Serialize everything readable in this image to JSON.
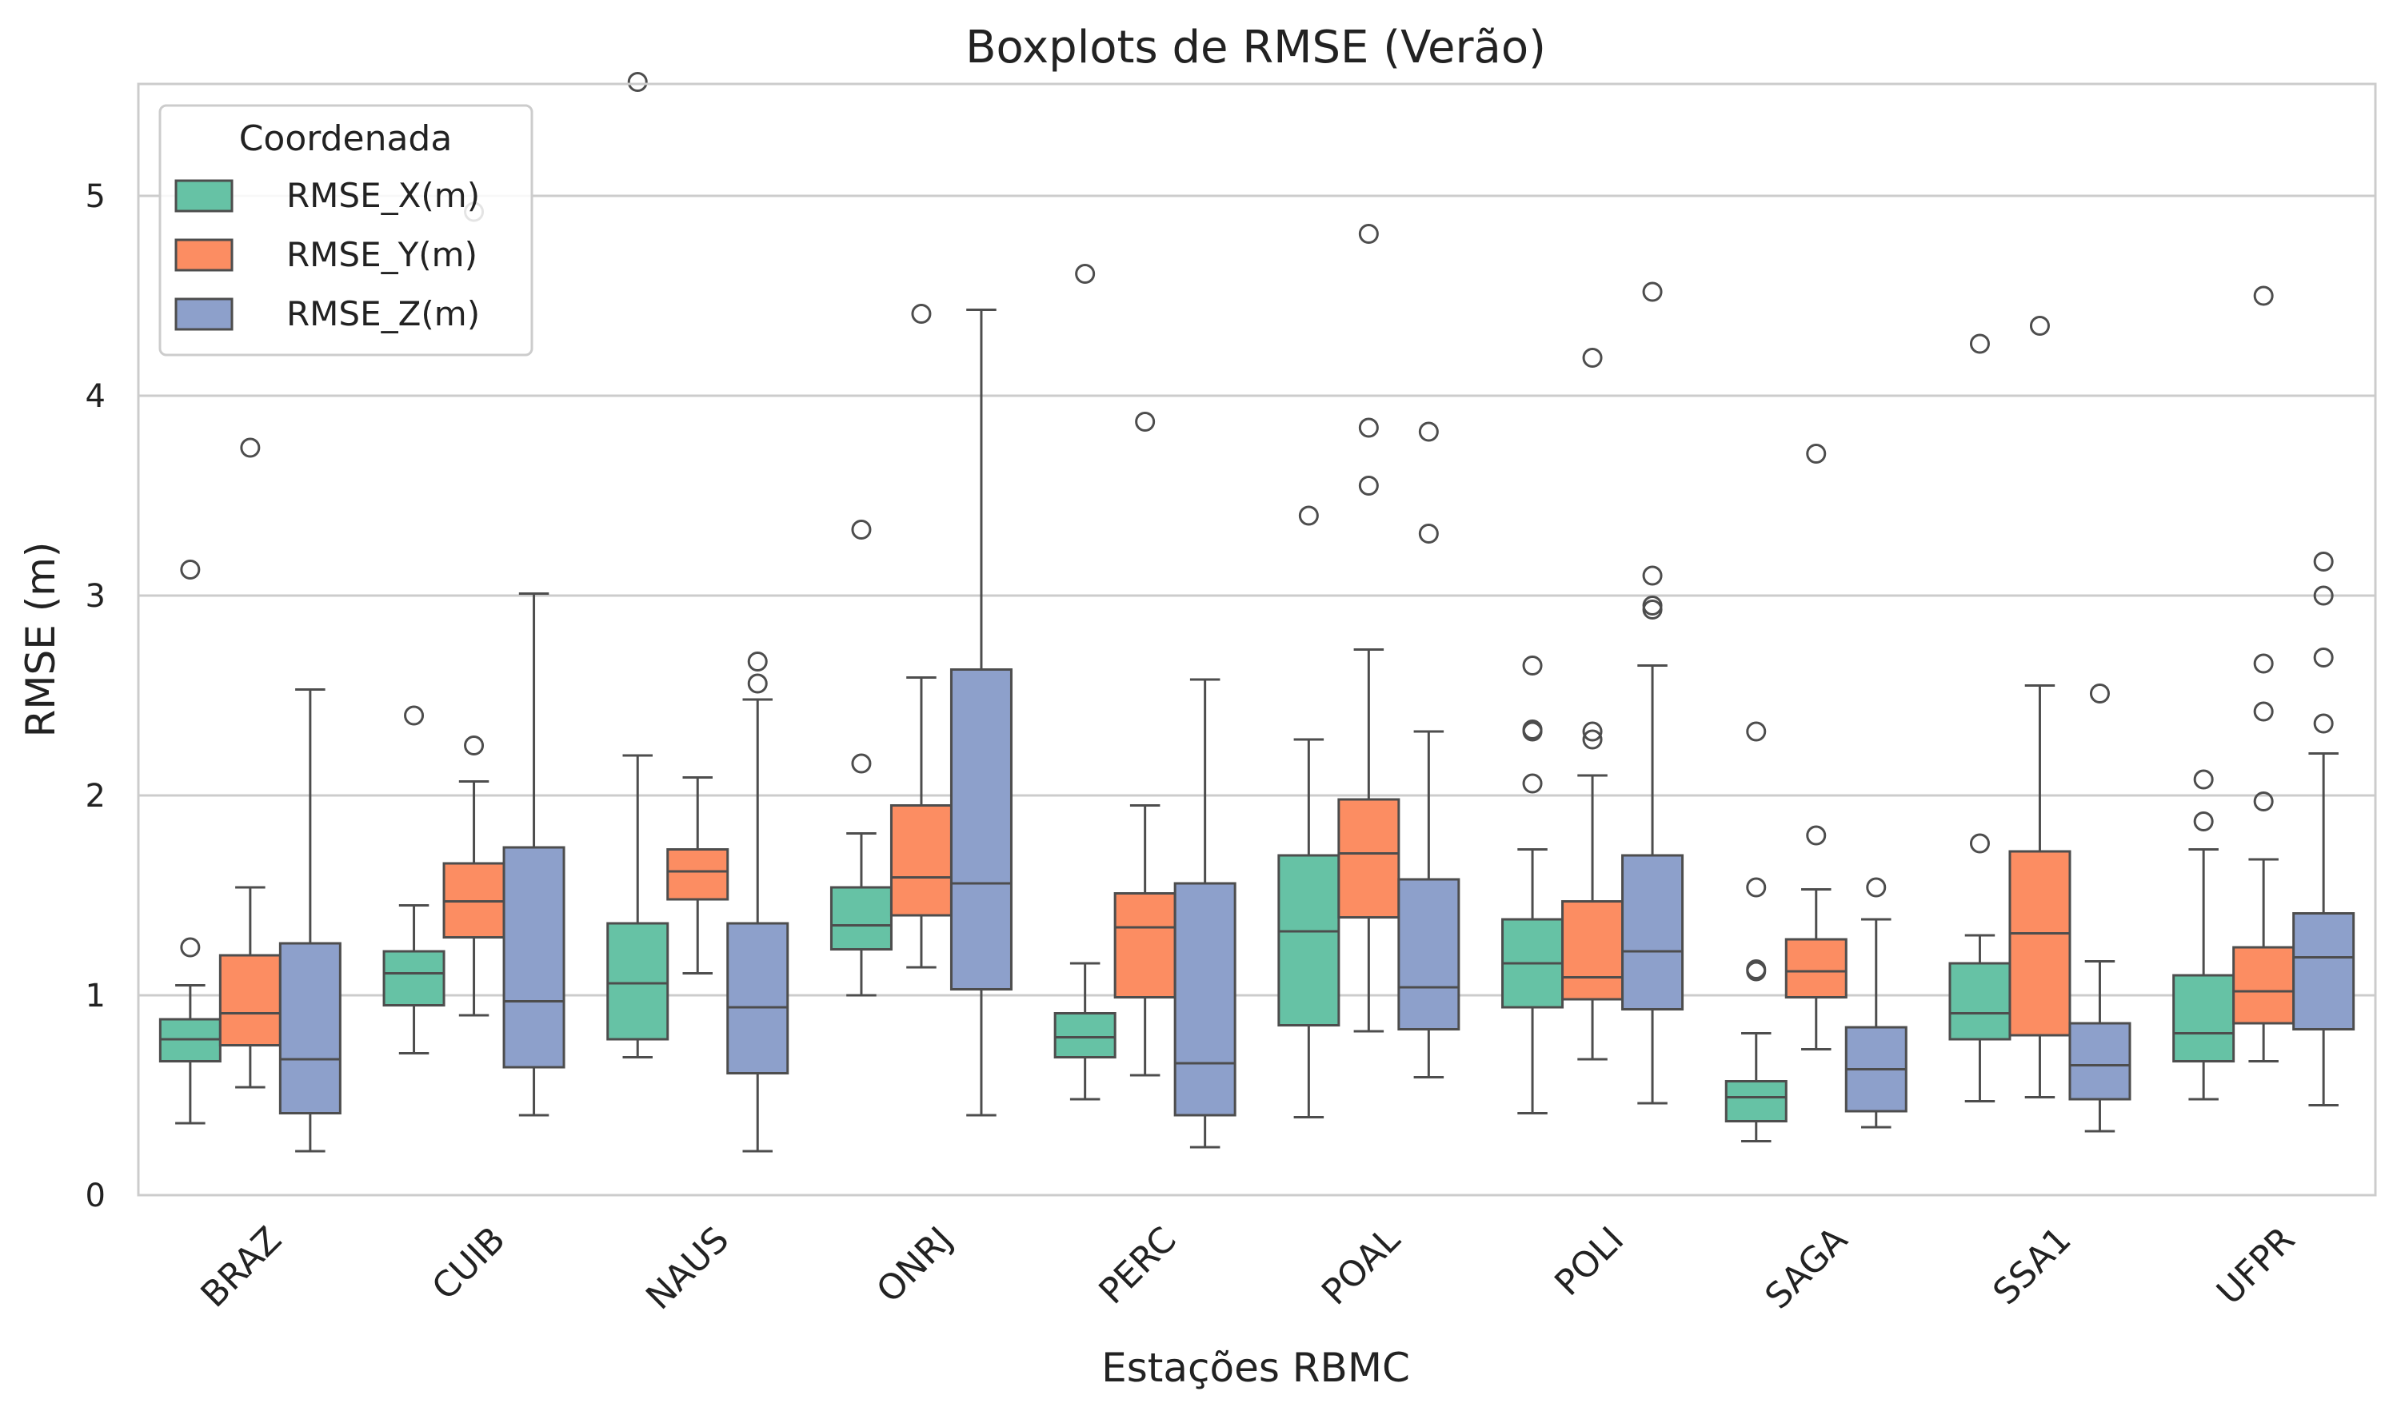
{
  "chart_data": {
    "type": "box",
    "title": "Boxplots de RMSE (Verão)",
    "xlabel": "Estações RBMC",
    "ylabel": "RMSE (m)",
    "ylim": [
      0,
      5.55
    ],
    "yticks": [
      0,
      1,
      2,
      3,
      4,
      5
    ],
    "grid": true,
    "legend": {
      "title": "Coordenada",
      "position": "top-left"
    },
    "categories": [
      "BRAZ",
      "CUIB",
      "NAUS",
      "ONRJ",
      "PERC",
      "POAL",
      "POLI",
      "SAGA",
      "SSA1",
      "UFPR"
    ],
    "series": [
      {
        "name": "RMSE_X(m)",
        "color": "#66c2a5",
        "boxes": [
          {
            "whislo": 0.36,
            "q1": 0.67,
            "med": 0.78,
            "q3": 0.88,
            "whishi": 1.05,
            "fliers": [
              1.24,
              3.13
            ]
          },
          {
            "whislo": 0.71,
            "q1": 0.95,
            "med": 1.11,
            "q3": 1.22,
            "whishi": 1.45,
            "fliers": [
              2.4
            ]
          },
          {
            "whislo": 0.69,
            "q1": 0.78,
            "med": 1.06,
            "q3": 1.36,
            "whishi": 2.2,
            "fliers": [
              5.57
            ]
          },
          {
            "whislo": 1.0,
            "q1": 1.23,
            "med": 1.35,
            "q3": 1.54,
            "whishi": 1.81,
            "fliers": [
              2.16,
              3.33
            ]
          },
          {
            "whislo": 0.48,
            "q1": 0.69,
            "med": 0.79,
            "q3": 0.91,
            "whishi": 1.16,
            "fliers": [
              4.61
            ]
          },
          {
            "whislo": 0.39,
            "q1": 0.85,
            "med": 1.32,
            "q3": 1.7,
            "whishi": 2.28,
            "fliers": [
              3.4
            ]
          },
          {
            "whislo": 0.41,
            "q1": 0.94,
            "med": 1.16,
            "q3": 1.38,
            "whishi": 1.73,
            "fliers": [
              2.06,
              2.32,
              2.33,
              2.65
            ]
          },
          {
            "whislo": 0.27,
            "q1": 0.37,
            "med": 0.49,
            "q3": 0.57,
            "whishi": 0.81,
            "fliers": [
              1.12,
              1.13,
              1.54,
              2.32
            ]
          },
          {
            "whislo": 0.47,
            "q1": 0.78,
            "med": 0.91,
            "q3": 1.16,
            "whishi": 1.3,
            "fliers": [
              1.76,
              4.26
            ]
          },
          {
            "whislo": 0.48,
            "q1": 0.67,
            "med": 0.81,
            "q3": 1.1,
            "whishi": 1.73,
            "fliers": [
              1.87,
              2.08
            ]
          }
        ]
      },
      {
        "name": "RMSE_Y(m)",
        "color": "#fc8d62",
        "boxes": [
          {
            "whislo": 0.54,
            "q1": 0.75,
            "med": 0.91,
            "q3": 1.2,
            "whishi": 1.54,
            "fliers": [
              3.74
            ]
          },
          {
            "whislo": 0.9,
            "q1": 1.29,
            "med": 1.47,
            "q3": 1.66,
            "whishi": 2.07,
            "fliers": [
              2.25,
              4.92
            ]
          },
          {
            "whislo": 1.11,
            "q1": 1.48,
            "med": 1.62,
            "q3": 1.73,
            "whishi": 2.09,
            "fliers": []
          },
          {
            "whislo": 1.14,
            "q1": 1.4,
            "med": 1.59,
            "q3": 1.95,
            "whishi": 2.59,
            "fliers": [
              4.41
            ]
          },
          {
            "whislo": 0.6,
            "q1": 0.99,
            "med": 1.34,
            "q3": 1.51,
            "whishi": 1.95,
            "fliers": [
              3.87
            ]
          },
          {
            "whislo": 0.82,
            "q1": 1.39,
            "med": 1.71,
            "q3": 1.98,
            "whishi": 2.73,
            "fliers": [
              3.55,
              3.84,
              4.81
            ]
          },
          {
            "whislo": 0.68,
            "q1": 0.98,
            "med": 1.09,
            "q3": 1.47,
            "whishi": 2.1,
            "fliers": [
              2.28,
              2.32,
              4.19
            ]
          },
          {
            "whislo": 0.73,
            "q1": 0.99,
            "med": 1.12,
            "q3": 1.28,
            "whishi": 1.53,
            "fliers": [
              1.8,
              3.71
            ]
          },
          {
            "whislo": 0.49,
            "q1": 0.8,
            "med": 1.31,
            "q3": 1.72,
            "whishi": 2.55,
            "fliers": [
              4.35
            ]
          },
          {
            "whislo": 0.67,
            "q1": 0.86,
            "med": 1.02,
            "q3": 1.24,
            "whishi": 1.68,
            "fliers": [
              1.97,
              2.42,
              2.66,
              4.5
            ]
          }
        ]
      },
      {
        "name": "RMSE_Z(m)",
        "color": "#8da0cb",
        "boxes": [
          {
            "whislo": 0.22,
            "q1": 0.41,
            "med": 0.68,
            "q3": 1.26,
            "whishi": 2.53,
            "fliers": []
          },
          {
            "whislo": 0.4,
            "q1": 0.64,
            "med": 0.97,
            "q3": 1.74,
            "whishi": 3.01,
            "fliers": []
          },
          {
            "whislo": 0.22,
            "q1": 0.61,
            "med": 0.94,
            "q3": 1.36,
            "whishi": 2.48,
            "fliers": [
              2.56,
              2.67
            ]
          },
          {
            "whislo": 0.4,
            "q1": 1.03,
            "med": 1.56,
            "q3": 2.63,
            "whishi": 4.43,
            "fliers": []
          },
          {
            "whislo": 0.24,
            "q1": 0.4,
            "med": 0.66,
            "q3": 1.56,
            "whishi": 2.58,
            "fliers": []
          },
          {
            "whislo": 0.59,
            "q1": 0.83,
            "med": 1.04,
            "q3": 1.58,
            "whishi": 2.32,
            "fliers": [
              3.31,
              3.82
            ]
          },
          {
            "whislo": 0.46,
            "q1": 0.93,
            "med": 1.22,
            "q3": 1.7,
            "whishi": 2.65,
            "fliers": [
              2.93,
              2.95,
              3.1,
              4.52
            ]
          },
          {
            "whislo": 0.34,
            "q1": 0.42,
            "med": 0.63,
            "q3": 0.84,
            "whishi": 1.38,
            "fliers": [
              1.54
            ]
          },
          {
            "whislo": 0.32,
            "q1": 0.48,
            "med": 0.65,
            "q3": 0.86,
            "whishi": 1.17,
            "fliers": [
              2.51
            ]
          },
          {
            "whislo": 0.45,
            "q1": 0.83,
            "med": 1.19,
            "q3": 1.41,
            "whishi": 2.21,
            "fliers": [
              2.36,
              2.69,
              3.0,
              3.17
            ]
          }
        ]
      }
    ]
  }
}
